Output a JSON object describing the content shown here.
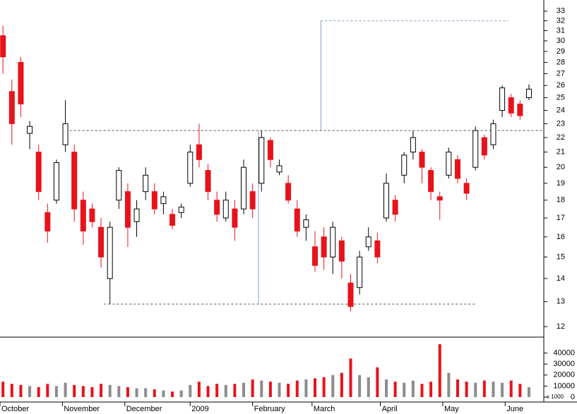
{
  "chart_data": {
    "type": "candlestick",
    "xlim": [
      0,
      183
    ],
    "xticks": [
      {
        "value": 0,
        "label": "October"
      },
      {
        "value": 21,
        "label": "November"
      },
      {
        "value": 42,
        "label": "December"
      },
      {
        "value": 64,
        "label": "2009"
      },
      {
        "value": 85,
        "label": "February"
      },
      {
        "value": 105,
        "label": "March"
      },
      {
        "value": 128,
        "label": "April"
      },
      {
        "value": 149,
        "label": "May"
      },
      {
        "value": 170,
        "label": "June"
      }
    ],
    "ylim": [
      11.68,
      34.2
    ],
    "log": true,
    "yticks": [
      12,
      13,
      14,
      15,
      16,
      17,
      18,
      19,
      20,
      21,
      22,
      23,
      24,
      25,
      26,
      27,
      28,
      29,
      30,
      31,
      32,
      33
    ],
    "up_color": "#ffffff",
    "down_color": "#e8121b",
    "candles": {
      "x": [
        1,
        4,
        7,
        10,
        13,
        16,
        19,
        22,
        25,
        28,
        31,
        34,
        37,
        40,
        43,
        46,
        49,
        52,
        55,
        58,
        61,
        64,
        67,
        70,
        73,
        76,
        79,
        82,
        85,
        88,
        91,
        94,
        97,
        100,
        103,
        106,
        109,
        112,
        115,
        118,
        121,
        124,
        127,
        130,
        133,
        136,
        139,
        142,
        145,
        148,
        151,
        154,
        157,
        160,
        163,
        166,
        169,
        172,
        175,
        178
      ],
      "open": [
        30.5,
        25.5,
        28,
        22.3,
        21,
        17.3,
        18,
        21.5,
        21,
        18,
        17.5,
        16.5,
        14,
        18,
        18.5,
        16.8,
        18.5,
        18.5,
        17.8,
        17.2,
        17.3,
        19,
        21.5,
        19.8,
        18,
        17,
        17.5,
        17.5,
        18.5,
        19,
        21.8,
        19.7,
        19,
        17.5,
        16.5,
        15.5,
        16,
        15,
        15.8,
        13.8,
        13.6,
        15.5,
        15.8,
        17,
        18,
        19.5,
        21,
        21,
        19.8,
        18.2,
        19.5,
        20.5,
        19,
        20,
        22,
        21.5,
        24,
        25,
        24.5,
        25
      ],
      "high": [
        31.5,
        26.5,
        28.5,
        23.2,
        21.5,
        17.8,
        20.5,
        24.8,
        21.5,
        18.5,
        17.8,
        17,
        16.8,
        20,
        19,
        18,
        20,
        19,
        18.5,
        17.5,
        17.8,
        21.5,
        23,
        20.2,
        18.5,
        18.5,
        18,
        20.5,
        19,
        22.5,
        22,
        20.5,
        19.5,
        18,
        17.2,
        16.3,
        16.5,
        16.8,
        16,
        14.2,
        15.3,
        16.5,
        16.2,
        19.6,
        18.3,
        21,
        22.5,
        21.2,
        20,
        18.5,
        21.3,
        20.8,
        19.3,
        22.8,
        22.2,
        23.3,
        26,
        25.3,
        24.8,
        26.1
      ],
      "low": [
        27,
        21.5,
        23.5,
        21.2,
        18,
        15.7,
        17.8,
        21,
        16.8,
        15.6,
        16.5,
        14.5,
        12.9,
        17.5,
        15.5,
        16,
        18,
        17.2,
        17.2,
        16.4,
        17,
        18.8,
        20,
        18,
        16.8,
        16.8,
        15.8,
        17.2,
        17,
        18.5,
        20,
        19.5,
        17.8,
        16,
        15.8,
        14.3,
        14.4,
        14.2,
        14,
        12.6,
        13.3,
        15.3,
        14.7,
        16.8,
        16.8,
        19,
        20.5,
        19,
        18,
        16.9,
        19.3,
        19,
        18,
        19.8,
        20.5,
        21.2,
        23.5,
        23.5,
        23.3,
        24.8
      ],
      "close": [
        28.5,
        23,
        24.5,
        22.8,
        18.5,
        16.3,
        20.3,
        23,
        17.5,
        16.3,
        16.8,
        15,
        16.5,
        19.8,
        16.5,
        17.5,
        19.5,
        17.5,
        18.2,
        16.6,
        17.6,
        21,
        20.5,
        18.5,
        17.2,
        18,
        16.5,
        20,
        17.5,
        22,
        20.5,
        20.1,
        18,
        16.3,
        16.9,
        14.6,
        15,
        16.5,
        14.8,
        12.8,
        15,
        16,
        15,
        19,
        17.2,
        20.8,
        22,
        20,
        18.5,
        18,
        21,
        19.3,
        18.4,
        22.5,
        20.8,
        23,
        25.8,
        23.8,
        23.6,
        25.7
      ]
    },
    "lines": [
      {
        "x": [
          22,
          183
        ],
        "y": [
          22.5,
          22.5
        ],
        "color": "#555555"
      },
      {
        "x": [
          35,
          160
        ],
        "y": [
          12.9,
          12.9
        ],
        "color": "#555555"
      },
      {
        "x": [
          108,
          171
        ],
        "y": [
          32,
          32
        ],
        "color": "#7f9fbf"
      },
      {
        "x": [
          87,
          87
        ],
        "y": [
          12.9,
          22.5
        ],
        "color": "#7f9fbf"
      },
      {
        "x": [
          108,
          108
        ],
        "y": [
          22.5,
          32
        ],
        "color": "#7f9fbf"
      }
    ],
    "volume": {
      "unit_label": "x 1000",
      "ylim": [
        0,
        50000
      ],
      "yticks": [
        0,
        10000,
        20000,
        30000,
        40000
      ],
      "up_color": "#8c8c8c",
      "down_color": "#e8121b",
      "values": [
        14000,
        12000,
        11000,
        10000,
        9000,
        12000,
        10000,
        13000,
        11000,
        10000,
        9000,
        12000,
        11000,
        10000,
        9000,
        8000,
        8000,
        7000,
        6000,
        5000,
        6000,
        11000,
        14000,
        10000,
        12000,
        11000,
        12000,
        13000,
        16000,
        15000,
        14000,
        13000,
        12000,
        15000,
        16000,
        17000,
        18000,
        20000,
        22000,
        35000,
        20000,
        18000,
        27000,
        16000,
        14000,
        13000,
        15000,
        12000,
        14000,
        48000,
        22000,
        16000,
        14000,
        13000,
        15000,
        14000,
        13000,
        15000,
        12000,
        9000
      ]
    }
  }
}
